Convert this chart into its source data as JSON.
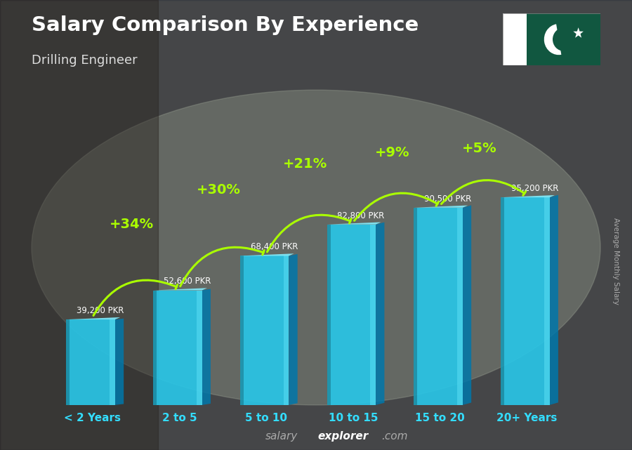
{
  "title": "Salary Comparison By Experience",
  "subtitle": "Drilling Engineer",
  "categories": [
    "< 2 Years",
    "2 to 5",
    "5 to 10",
    "10 to 15",
    "15 to 20",
    "20+ Years"
  ],
  "values": [
    39200,
    52600,
    68400,
    82800,
    90500,
    95200
  ],
  "labels": [
    "39,200 PKR",
    "52,600 PKR",
    "68,400 PKR",
    "82,800 PKR",
    "90,500 PKR",
    "95,200 PKR"
  ],
  "pct_changes": [
    "+34%",
    "+30%",
    "+21%",
    "+9%",
    "+5%"
  ],
  "bar_face_color": "#29c5e6",
  "bar_left_color": "#1a9ab5",
  "bar_right_color": "#5de0f5",
  "bar_top_color": "#80eeff",
  "bar_shadow_color": "#0077aa",
  "pct_color": "#aaff00",
  "label_color": "#ffffff",
  "xlabel_color": "#33ddff",
  "title_color": "#ffffff",
  "subtitle_color": "#dddddd",
  "footer_salary": "salary",
  "footer_explorer": "explorer",
  "footer_com": ".com",
  "footer_color_salary": "#aaaaaa",
  "footer_color_explorer": "#ffffff",
  "ylabel_text": "Average Monthly Salary",
  "figsize": [
    9.0,
    6.41
  ],
  "dpi": 100,
  "ylim_max": 130000,
  "bar_width": 0.52
}
